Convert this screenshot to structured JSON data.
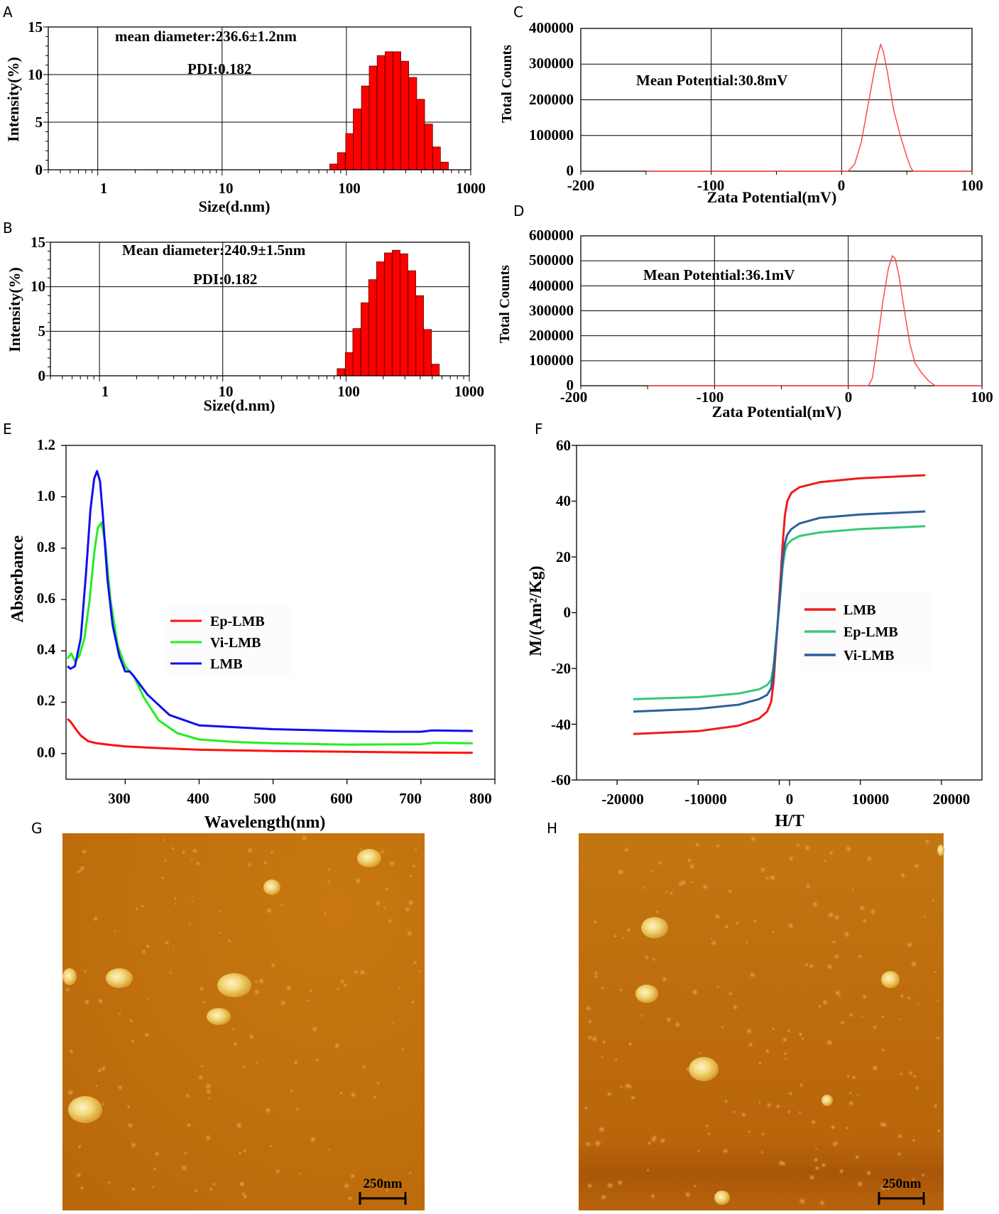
{
  "panels": {
    "A": "A",
    "B": "B",
    "C": "C",
    "D": "D",
    "E": "E",
    "F": "F",
    "G": "G",
    "H": "H"
  },
  "chart_data": [
    {
      "panel": "A",
      "type": "bar",
      "xscale": "log",
      "xlim": [
        0.4,
        1000
      ],
      "ylim": [
        0,
        15
      ],
      "xticks": [
        "1",
        "10",
        "100",
        "1000"
      ],
      "yticks": [
        "0",
        "5",
        "10",
        "15"
      ],
      "xlabel": "Size(d.nm)",
      "ylabel": "Intensity(%)",
      "annotations": [
        "mean diameter:236.6±1.2nm",
        "PDI:0.182"
      ],
      "color": "#ff0000",
      "x": [
        79,
        91,
        106,
        122,
        142,
        164,
        190,
        220,
        255,
        295,
        342,
        396,
        459,
        531,
        615
      ],
      "values": [
        0.6,
        1.8,
        3.8,
        6.4,
        8.8,
        10.9,
        12.0,
        12.4,
        12.4,
        11.4,
        9.7,
        7.4,
        4.8,
        2.4,
        0.8
      ]
    },
    {
      "panel": "B",
      "type": "bar",
      "xscale": "log",
      "xlim": [
        0.4,
        1000
      ],
      "ylim": [
        0,
        15
      ],
      "xticks": [
        "1",
        "10",
        "100",
        "1000"
      ],
      "yticks": [
        "0",
        "5",
        "10",
        "15"
      ],
      "xlabel": "Size(d.nm)",
      "ylabel": "Intensity(%)",
      "annotations": [
        "Mean diameter:240.9±1.5nm",
        "PDI:0.182"
      ],
      "color": "#ff0000",
      "x": [
        91,
        106,
        122,
        142,
        164,
        190,
        220,
        255,
        295,
        342,
        396,
        459,
        531
      ],
      "values": [
        0.8,
        2.6,
        5.3,
        8.2,
        10.8,
        12.8,
        13.8,
        14.1,
        13.7,
        11.8,
        9.0,
        5.2,
        1.3
      ]
    },
    {
      "panel": "C",
      "type": "line",
      "xlim": [
        -200,
        100
      ],
      "ylim": [
        0,
        400000
      ],
      "xticks": [
        "-200",
        "-100",
        "0",
        "100"
      ],
      "yticks": [
        "0",
        "100000",
        "200000",
        "300000",
        "400000"
      ],
      "xlabel": "Zata Potential(mV)",
      "ylabel": "Total Counts",
      "annotations": [
        "Mean Potential:30.8mV"
      ],
      "color": "#ff4040",
      "x": [
        -150,
        5,
        10,
        15,
        20,
        25,
        28,
        30,
        32,
        35,
        40,
        45,
        50,
        53,
        55,
        100
      ],
      "y": [
        0,
        0,
        20000,
        80000,
        180000,
        280000,
        330000,
        355000,
        335000,
        280000,
        170000,
        100000,
        40000,
        10000,
        0,
        0
      ]
    },
    {
      "panel": "D",
      "type": "line",
      "xlim": [
        -200,
        100
      ],
      "ylim": [
        0,
        600000
      ],
      "xticks": [
        "-200",
        "-100",
        "0",
        "100"
      ],
      "yticks": [
        "0",
        "100000",
        "200000",
        "300000",
        "400000",
        "500000",
        "600000"
      ],
      "xlabel": "Zata Potential(mV)",
      "ylabel": "Total Counts",
      "annotations": [
        "Mean Potential:36.1mV"
      ],
      "color": "#ff4040",
      "x": [
        -150,
        15,
        18,
        22,
        26,
        30,
        33,
        35,
        38,
        42,
        46,
        50,
        55,
        60,
        65,
        100
      ],
      "y": [
        0,
        0,
        30000,
        180000,
        340000,
        470000,
        520000,
        510000,
        440000,
        300000,
        170000,
        90000,
        50000,
        20000,
        0,
        0
      ]
    },
    {
      "panel": "E",
      "type": "line",
      "xlim": [
        220,
        800
      ],
      "ylim": [
        -0.1,
        1.2
      ],
      "xticks": [
        "300",
        "400",
        "500",
        "600",
        "700",
        "800"
      ],
      "yticks": [
        "0.0",
        "0.2",
        "0.4",
        "0.6",
        "0.8",
        "1.0",
        "1.2"
      ],
      "xlabel": "Wavelength(nm)",
      "ylabel": "Absorbance",
      "legend": [
        "Ep-LMB",
        "Vi-LMB",
        "LMB"
      ],
      "series": [
        {
          "name": "Ep-LMB",
          "color": "#ff1010",
          "x": [
            222,
            226,
            232,
            240,
            250,
            262,
            280,
            300,
            340,
            400,
            500,
            600,
            700,
            770
          ],
          "y": [
            0.135,
            0.125,
            0.1,
            0.07,
            0.048,
            0.04,
            0.034,
            0.028,
            0.022,
            0.015,
            0.01,
            0.007,
            0.004,
            0.003
          ]
        },
        {
          "name": "Vi-LMB",
          "color": "#22ee22",
          "x": [
            222,
            227,
            232,
            238,
            245,
            252,
            258,
            263,
            268,
            273,
            280,
            290,
            300,
            312,
            325,
            345,
            370,
            400,
            450,
            500,
            600,
            700,
            710,
            720,
            770
          ],
          "y": [
            0.37,
            0.39,
            0.36,
            0.38,
            0.45,
            0.6,
            0.78,
            0.88,
            0.9,
            0.82,
            0.6,
            0.42,
            0.34,
            0.3,
            0.22,
            0.13,
            0.08,
            0.055,
            0.045,
            0.04,
            0.035,
            0.036,
            0.04,
            0.042,
            0.04
          ]
        },
        {
          "name": "LMB",
          "color": "#1010ee",
          "x": [
            222,
            226,
            232,
            240,
            247,
            253,
            258,
            262,
            266,
            270,
            276,
            283,
            292,
            300,
            306,
            312,
            330,
            360,
            400,
            500,
            600,
            660,
            700,
            715,
            770
          ],
          "y": [
            0.34,
            0.33,
            0.34,
            0.45,
            0.7,
            0.95,
            1.07,
            1.1,
            1.06,
            0.92,
            0.68,
            0.5,
            0.38,
            0.32,
            0.32,
            0.3,
            0.23,
            0.15,
            0.11,
            0.095,
            0.088,
            0.085,
            0.085,
            0.09,
            0.088
          ]
        }
      ]
    },
    {
      "panel": "F",
      "type": "line",
      "xlim": [
        -25000,
        25000
      ],
      "ylim": [
        -60,
        60
      ],
      "xticks": [
        "-20000",
        "-10000",
        "0",
        "10000",
        "20000"
      ],
      "yticks": [
        "-60",
        "-40",
        "-20",
        "0",
        "20",
        "40",
        "60"
      ],
      "xlabel": "H/T",
      "ylabel": "M/(Am²/Kg)",
      "legend": [
        "LMB",
        "Ep-LMB",
        "Vi-LMB"
      ],
      "series": [
        {
          "name": "LMB",
          "color": "#ee1c1c",
          "x": [
            -18000,
            -10000,
            -5000,
            -2500,
            -1500,
            -1000,
            -700,
            -400,
            -200,
            0,
            200,
            400,
            700,
            1000,
            1500,
            2500,
            5000,
            10000,
            18000
          ],
          "y": [
            -43.5,
            -42.5,
            -40.5,
            -38,
            -35.5,
            -32,
            -25,
            -12,
            -4,
            5,
            14,
            24,
            35,
            40,
            43,
            45,
            46.8,
            48.2,
            49.3
          ]
        },
        {
          "name": "Ep-LMB",
          "color": "#38c878",
          "x": [
            -18000,
            -10000,
            -5000,
            -2500,
            -1500,
            -1000,
            -700,
            -400,
            -200,
            0,
            200,
            400,
            700,
            1000,
            1500,
            2500,
            5000,
            10000,
            18000
          ],
          "y": [
            -31,
            -30.3,
            -29,
            -27.5,
            -26,
            -24,
            -19,
            -10,
            -4,
            2,
            9,
            16,
            22,
            24.5,
            26,
            27.5,
            28.8,
            30,
            31
          ]
        },
        {
          "name": "Vi-LMB",
          "color": "#2e5f9a",
          "x": [
            -18000,
            -10000,
            -5000,
            -2500,
            -1500,
            -1000,
            -700,
            -400,
            -200,
            0,
            200,
            400,
            700,
            1000,
            1500,
            2500,
            5000,
            10000,
            18000
          ],
          "y": [
            -35.5,
            -34.5,
            -33,
            -31,
            -29.5,
            -27,
            -21,
            -11,
            -4,
            3,
            10,
            18,
            25,
            28,
            30,
            32,
            34,
            35.2,
            36.3
          ]
        }
      ]
    }
  ],
  "afm": {
    "G": {
      "scale_label": "250nm"
    },
    "H": {
      "scale_label": "250nm"
    }
  }
}
